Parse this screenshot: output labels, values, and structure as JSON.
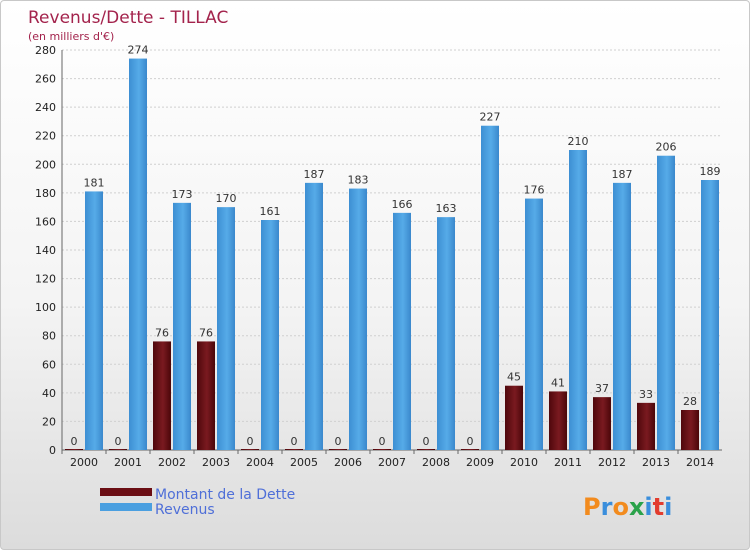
{
  "chart_data": {
    "type": "bar",
    "title": "Revenus/Dette - TILLAC",
    "subtitle": "(en milliers d'€)",
    "categories": [
      "2000",
      "2001",
      "2002",
      "2003",
      "2004",
      "2005",
      "2006",
      "2007",
      "2008",
      "2009",
      "2010",
      "2011",
      "2012",
      "2013",
      "2014"
    ],
    "series": [
      {
        "name": "Montant de la Dette",
        "color": "#6b0e14",
        "values": [
          0,
          0,
          76,
          76,
          0,
          0,
          0,
          0,
          0,
          0,
          45,
          41,
          37,
          33,
          28
        ]
      },
      {
        "name": "Revenus",
        "color": "#4a9fe0",
        "values": [
          181,
          274,
          173,
          170,
          161,
          187,
          183,
          166,
          163,
          227,
          176,
          210,
          187,
          206,
          189
        ]
      }
    ],
    "ylim": [
      0,
      280
    ],
    "yticks": [
      0,
      20,
      40,
      60,
      80,
      100,
      120,
      140,
      160,
      180,
      200,
      220,
      240,
      260,
      280
    ],
    "grid": true,
    "legend_position": "bottom-left"
  },
  "logo": {
    "letters": [
      {
        "char": "P",
        "color": "#f28b1e"
      },
      {
        "char": "r",
        "color": "#3a8edc"
      },
      {
        "char": "o",
        "color": "#f28b1e"
      },
      {
        "char": "x",
        "color": "#2aa24a"
      },
      {
        "char": "i",
        "color": "#3a8edc"
      },
      {
        "char": "t",
        "color": "#e23c2e"
      },
      {
        "char": "i",
        "color": "#3a8edc"
      }
    ]
  }
}
